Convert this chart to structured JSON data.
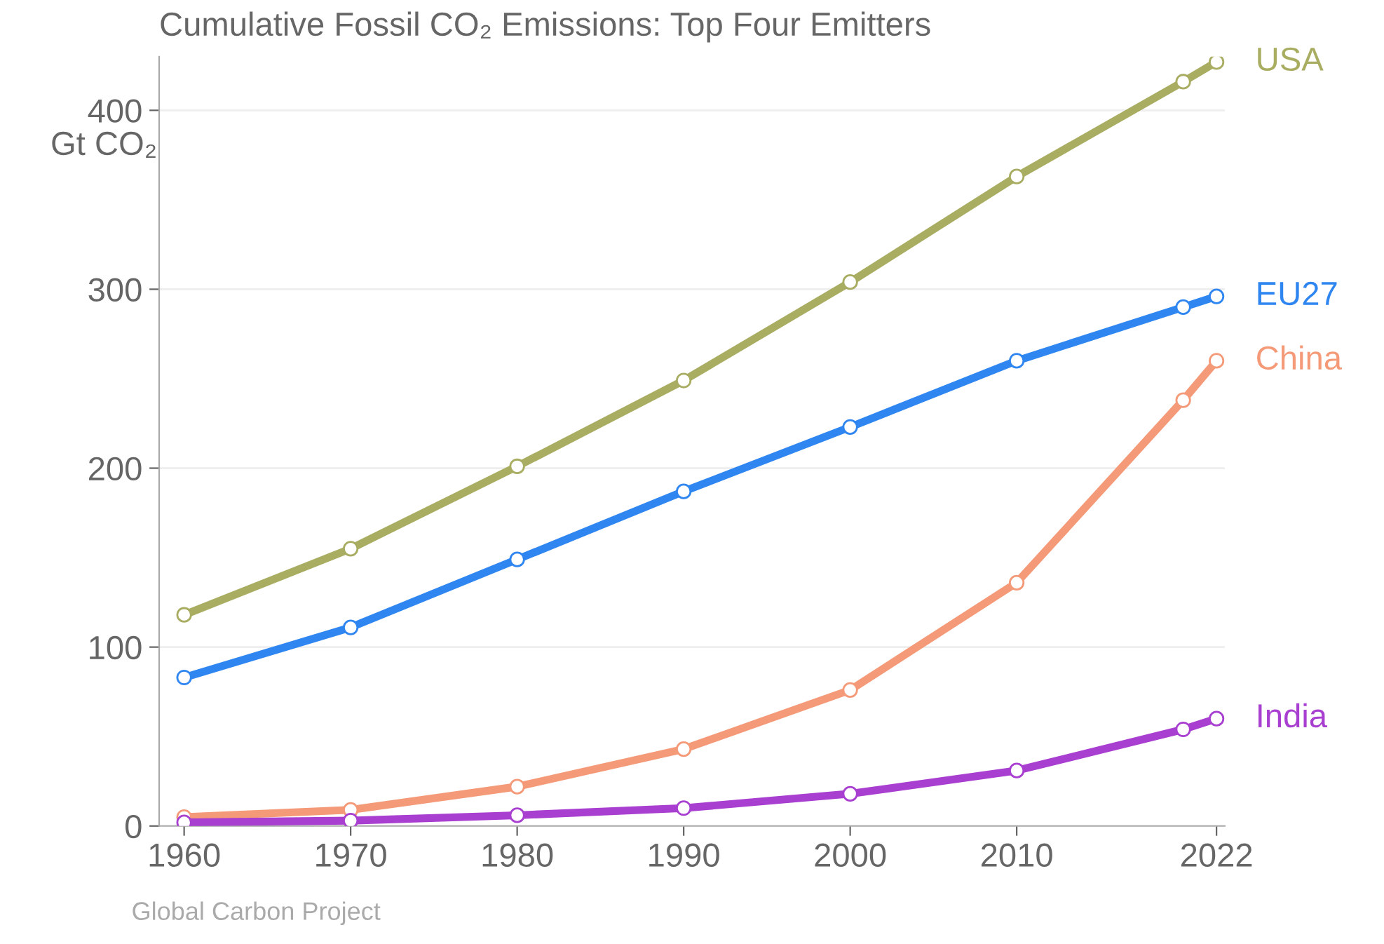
{
  "chart_data": {
    "type": "line",
    "title": "Cumulative Fossil CO₂ Emissions: Top Four Emitters",
    "ylabel": "Gt CO₂",
    "x": [
      1960,
      1970,
      1980,
      1990,
      2000,
      2010,
      2020,
      2022
    ],
    "series": [
      {
        "name": "USA",
        "color": "#a8ad62",
        "values": [
          118,
          155,
          201,
          249,
          304,
          363,
          416,
          427
        ]
      },
      {
        "name": "EU27",
        "color": "#2f86f0",
        "values": [
          83,
          111,
          149,
          187,
          223,
          260,
          290,
          296
        ]
      },
      {
        "name": "China",
        "color": "#f59a78",
        "values": [
          5,
          9,
          22,
          43,
          76,
          136,
          238,
          260
        ]
      },
      {
        "name": "India",
        "color": "#a83fd0",
        "values": [
          2,
          3,
          6,
          10,
          18,
          31,
          54,
          60
        ]
      }
    ],
    "xlim": [
      1958.5,
      2022.5
    ],
    "xticks": [
      1960,
      1970,
      1980,
      1990,
      2000,
      2010,
      2022
    ],
    "ylim": [
      0,
      430
    ],
    "yticks": [
      0,
      100,
      200,
      300,
      400
    ],
    "grid": "y",
    "marker": "circle",
    "line_style": "solid",
    "legend": "right",
    "annotations": [
      "Global Carbon Project"
    ]
  }
}
